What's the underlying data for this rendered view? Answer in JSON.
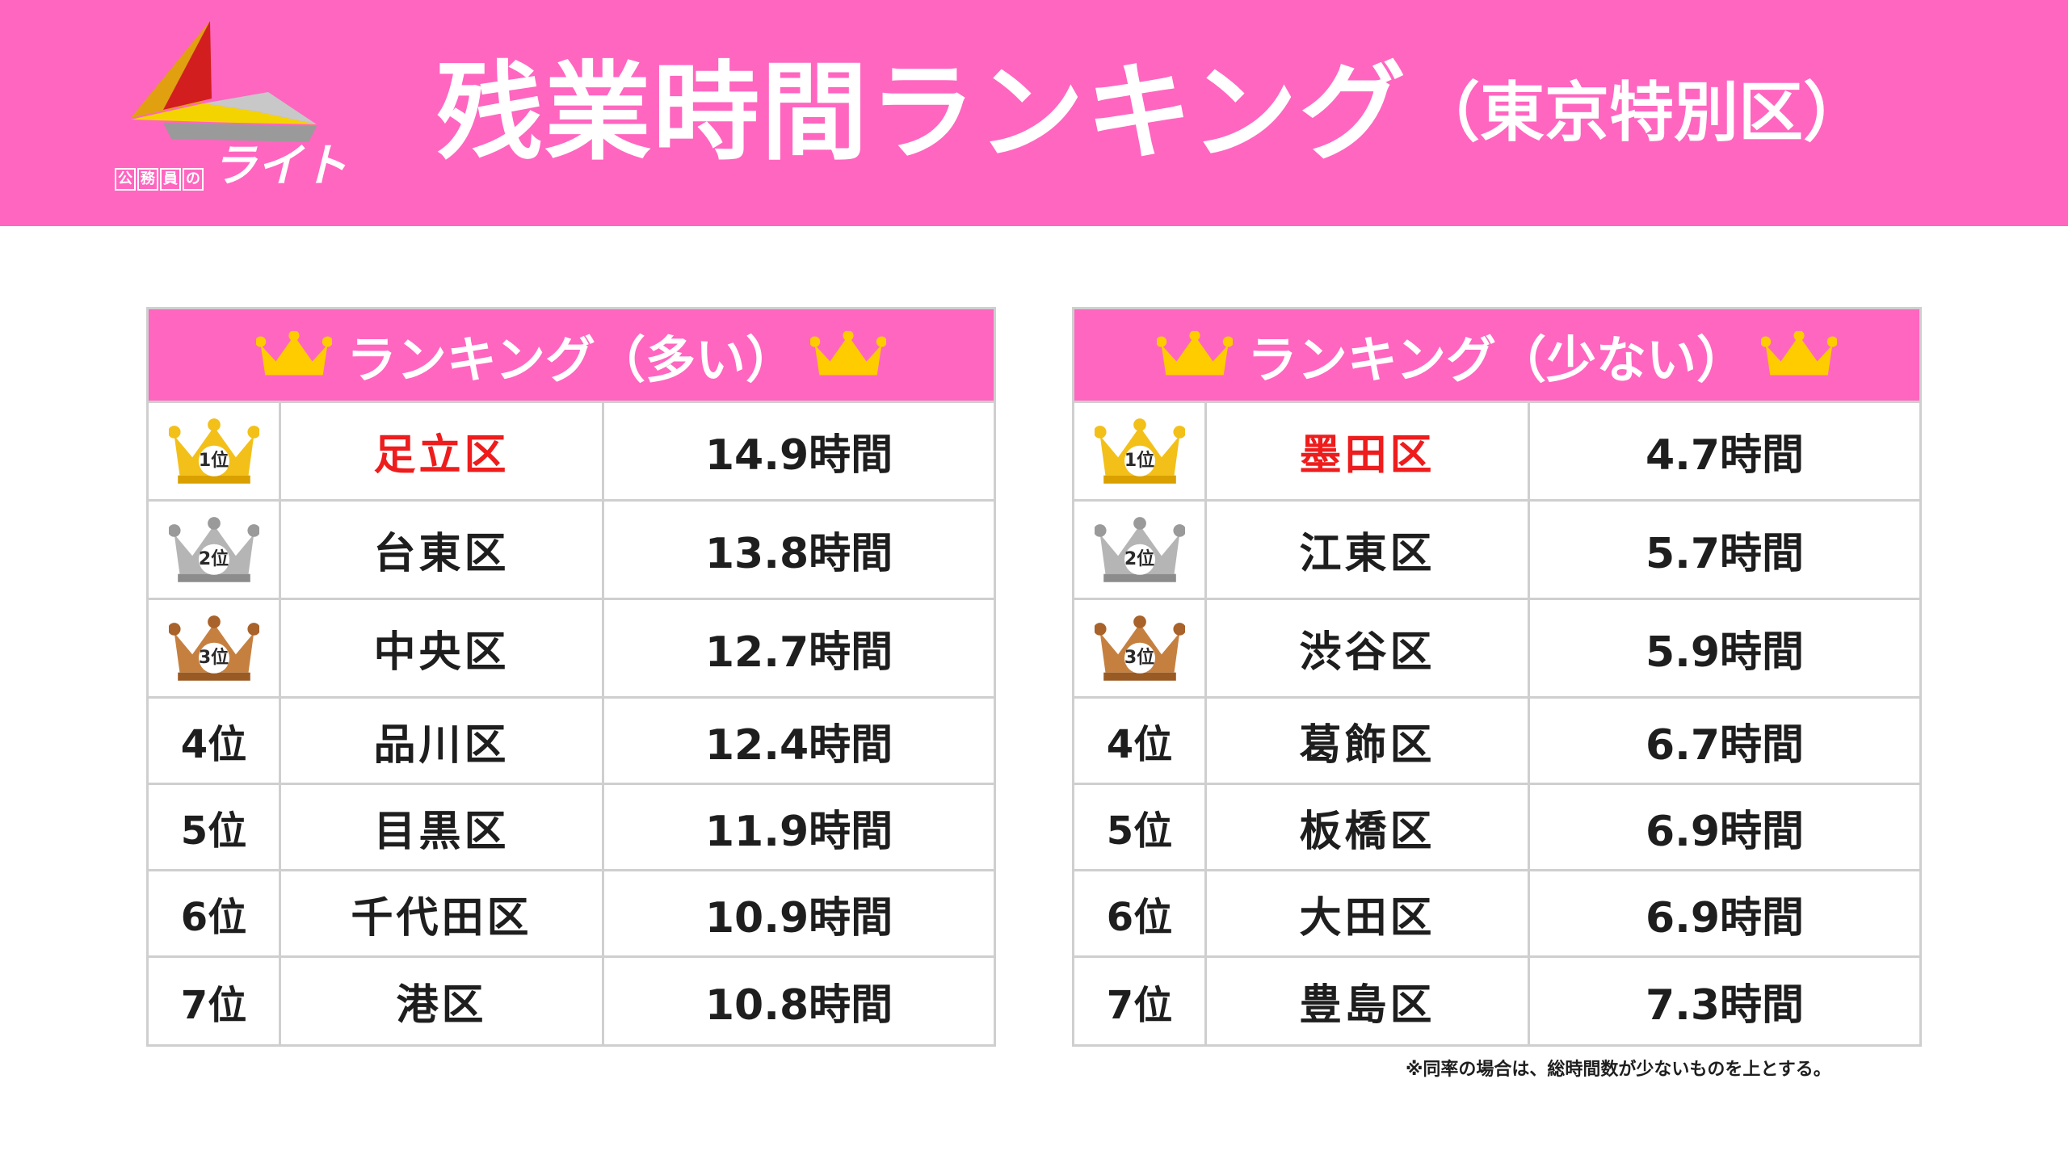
{
  "header": {
    "logo": {
      "sub_chars": [
        "公",
        "務",
        "員",
        "の"
      ],
      "main": "ライト"
    },
    "title": "残業時間ランキング",
    "subtitle": "（東京特別区）"
  },
  "colors": {
    "header_bg": "#ff66c0",
    "rank1_highlight": "#ee1c1c",
    "gold": "#f2c019",
    "silver": "#a9a9a9",
    "bronze": "#c07a35",
    "crown": "#ffcc00",
    "border": "#cfcfcf"
  },
  "tables": {
    "most": {
      "heading": "ランキング（多い）",
      "rows": [
        {
          "rank": "1位",
          "medal": "gold-crown-icon",
          "ward": "足立区",
          "time": "14.9時間"
        },
        {
          "rank": "2位",
          "medal": "silver-crown-icon",
          "ward": "台東区",
          "time": "13.8時間"
        },
        {
          "rank": "3位",
          "medal": "bronze-crown-icon",
          "ward": "中央区",
          "time": "12.7時間"
        },
        {
          "rank": "4位",
          "ward": "品川区",
          "time": "12.4時間"
        },
        {
          "rank": "5位",
          "ward": "目黒区",
          "time": "11.9時間"
        },
        {
          "rank": "6位",
          "ward": "千代田区",
          "time": "10.9時間"
        },
        {
          "rank": "7位",
          "ward": "港区",
          "time": "10.8時間"
        }
      ]
    },
    "least": {
      "heading": "ランキング（少ない）",
      "rows": [
        {
          "rank": "1位",
          "medal": "gold-crown-icon",
          "ward": "墨田区",
          "time": "4.7時間"
        },
        {
          "rank": "2位",
          "medal": "silver-crown-icon",
          "ward": "江東区",
          "time": "5.7時間"
        },
        {
          "rank": "3位",
          "medal": "bronze-crown-icon",
          "ward": "渋谷区",
          "time": "5.9時間"
        },
        {
          "rank": "4位",
          "ward": "葛飾区",
          "time": "6.7時間"
        },
        {
          "rank": "5位",
          "ward": "板橋区",
          "time": "6.9時間"
        },
        {
          "rank": "6位",
          "ward": "大田区",
          "time": "6.9時間"
        },
        {
          "rank": "7位",
          "ward": "豊島区",
          "time": "7.3時間"
        }
      ]
    }
  },
  "footnote": "※同率の場合は、総時間数が少ないものを上とする。"
}
